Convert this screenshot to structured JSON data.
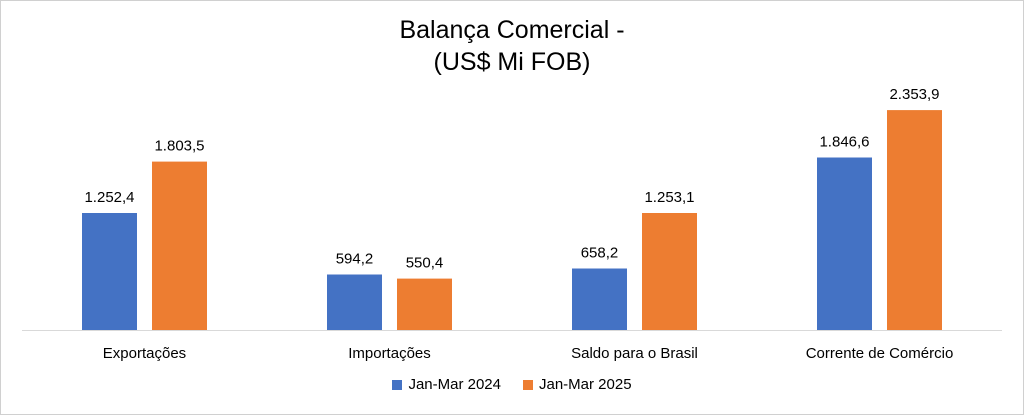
{
  "colors": {
    "series_1": "#4472c4",
    "series_2": "#ed7d31",
    "axis": "#d9d9d9",
    "text": "#000000"
  },
  "chart_data": {
    "type": "bar",
    "title_lines": [
      "Balança Comercial -",
      "(US$ Mi FOB)"
    ],
    "categories": [
      "Exportações",
      "Importações",
      "Saldo para o Brasil",
      "Corrente de Comércio"
    ],
    "series": [
      {
        "name": "Jan-Mar 2024",
        "values": [
          1252.4,
          594.2,
          658.2,
          1846.6
        ],
        "labels": [
          "1.252,4",
          "594,2",
          "658,2",
          "1.846,6"
        ]
      },
      {
        "name": "Jan-Mar 2025",
        "values": [
          1803.5,
          550.4,
          1253.1,
          2353.9
        ],
        "labels": [
          "1.803,5",
          "550,4",
          "1.253,1",
          "2.353,9"
        ]
      }
    ],
    "ylim": [
      0,
      2500
    ],
    "grid": false,
    "legend_position": "bottom"
  }
}
